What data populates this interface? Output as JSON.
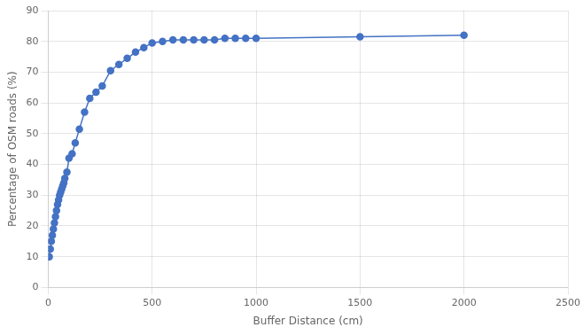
{
  "chart_data": {
    "type": "line",
    "x": [
      5,
      10,
      15,
      20,
      25,
      30,
      35,
      40,
      45,
      50,
      55,
      60,
      65,
      70,
      75,
      80,
      90,
      100,
      115,
      130,
      150,
      175,
      200,
      230,
      260,
      300,
      340,
      380,
      420,
      460,
      500,
      550,
      600,
      650,
      700,
      750,
      800,
      850,
      900,
      950,
      1000,
      1500,
      2000
    ],
    "values": [
      10.0,
      12.5,
      15.0,
      17.0,
      19.0,
      21.0,
      23.0,
      25.0,
      27.0,
      28.5,
      30.0,
      31.0,
      32.0,
      33.0,
      34.0,
      35.5,
      37.5,
      42.0,
      43.5,
      47.0,
      51.5,
      57.0,
      61.5,
      63.5,
      65.5,
      70.5,
      72.5,
      74.5,
      76.5,
      78.0,
      79.5,
      80.0,
      80.5,
      80.5,
      80.5,
      80.5,
      80.5,
      81.0,
      81.0,
      81.0,
      81.0,
      81.5,
      82.0
    ],
    "color": "#4472C4",
    "marker": "circle",
    "xlabel": "Buffer Distance (cm)",
    "ylabel": "Percentage of OSM roads (%)",
    "xlim": [
      0,
      2500
    ],
    "ylim": [
      0,
      90
    ],
    "xticks": [
      0,
      500,
      1000,
      1500,
      2000,
      2500
    ],
    "yticks": [
      0,
      10,
      20,
      30,
      40,
      50,
      60,
      70,
      80,
      90
    ],
    "grid": true
  }
}
